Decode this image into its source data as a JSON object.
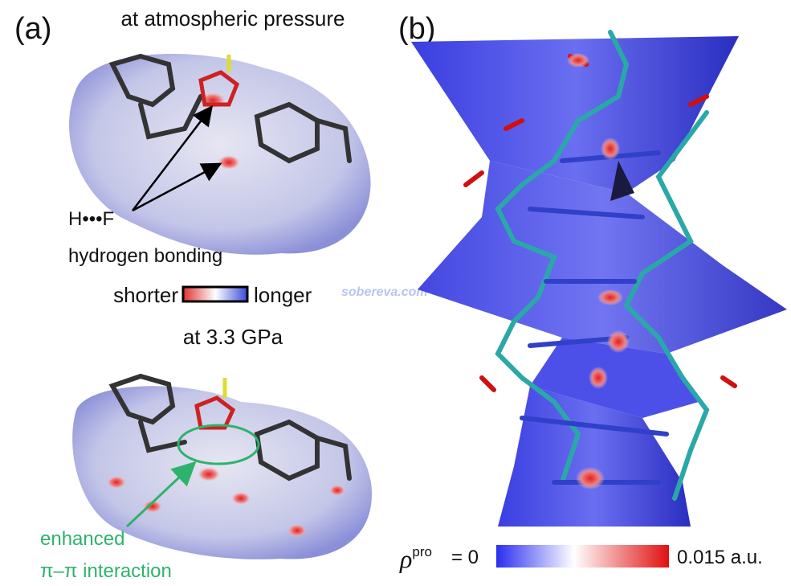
{
  "panel_a": {
    "label": "(a)",
    "top": {
      "title": "at atmospheric pressure",
      "annotation": {
        "line1": "H•••F",
        "line2": "hydrogen bonding"
      }
    },
    "colorbar": {
      "left": "shorter",
      "right": "longer"
    },
    "bottom": {
      "title": "at 3.3 GPa",
      "annotation": {
        "line1": "enhanced",
        "line2": "π–π interaction"
      }
    }
  },
  "panel_b": {
    "label": "(b)",
    "colorbar": {
      "symbol": "ρ",
      "superscript": "pro",
      "left": "= 0",
      "right": "0.015 a.u."
    }
  },
  "watermark": "sobereva.com"
}
